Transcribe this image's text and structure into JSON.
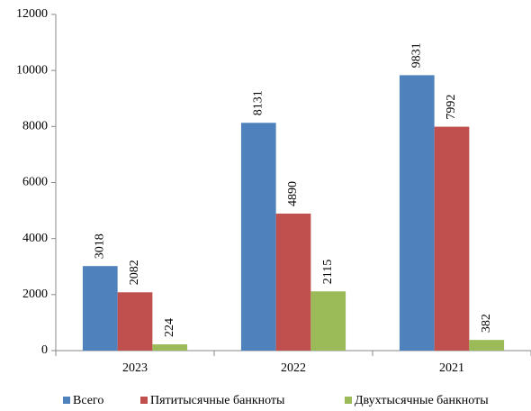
{
  "chart_data": {
    "type": "bar",
    "categories": [
      "2023",
      "2022",
      "2021"
    ],
    "series": [
      {
        "name": "Всего",
        "color": "#4f81bd",
        "values": [
          3018,
          8131,
          9831
        ]
      },
      {
        "name": "Пятитысячные банкноты",
        "color": "#c0504d",
        "values": [
          2082,
          4890,
          7992
        ]
      },
      {
        "name": "Двухтысячные банкноты",
        "color": "#9bbb59",
        "values": [
          224,
          2115,
          382
        ]
      }
    ],
    "ylim": [
      0,
      12000
    ],
    "yticks": [
      0,
      2000,
      4000,
      6000,
      8000,
      10000,
      12000
    ],
    "grid": false,
    "legend": "bottom"
  }
}
